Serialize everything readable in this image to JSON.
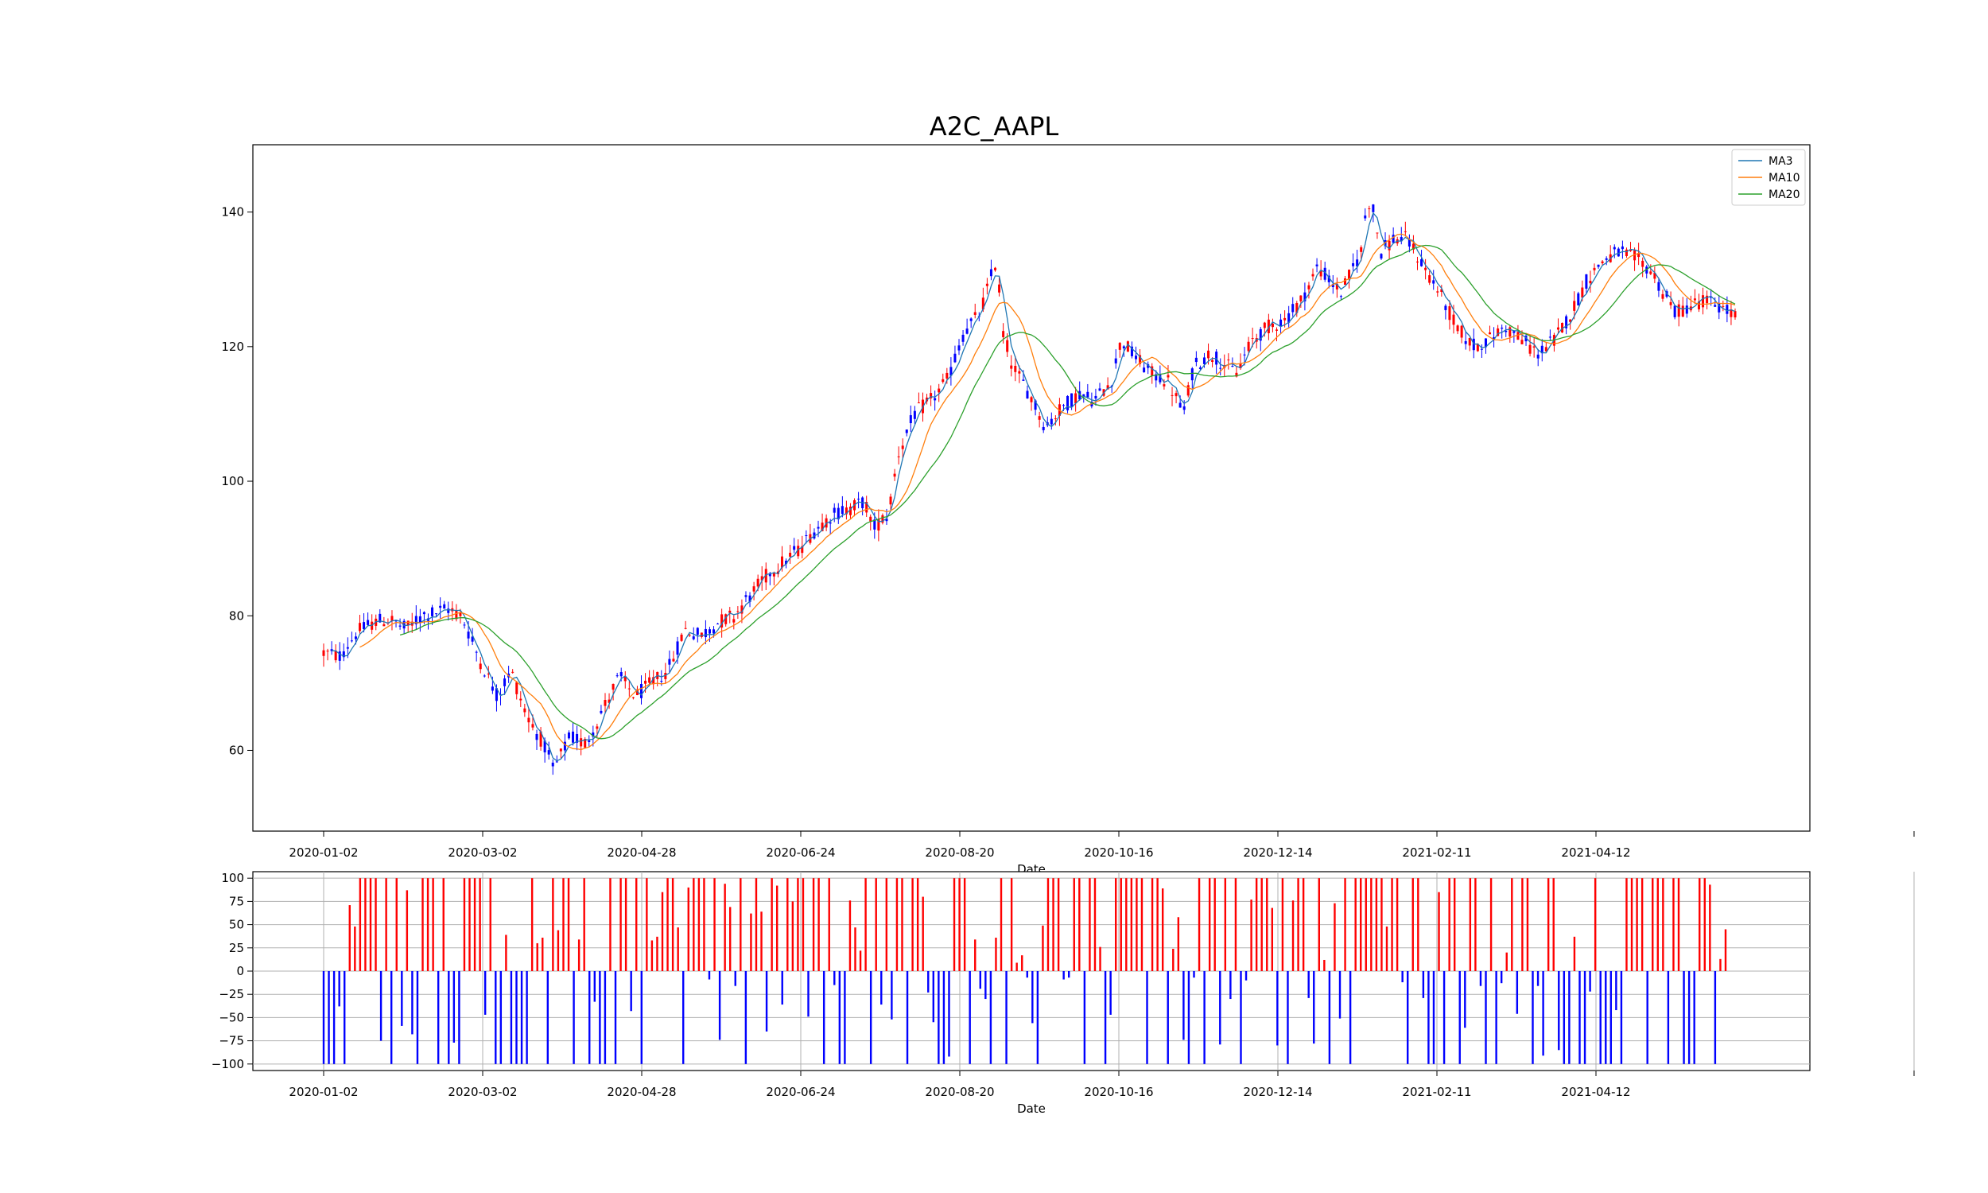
{
  "chart_data": {
    "title": "A2C_AAPL",
    "price_panel": {
      "type": "candlestick",
      "xlabel": "Date",
      "ylim": [
        48,
        150
      ],
      "yticks": [
        60,
        80,
        100,
        120,
        140
      ],
      "grid": false,
      "legend_position": "top-right",
      "x_tick_labels": [
        "2020-01-02",
        "2020-03-02",
        "2020-04-28",
        "2020-06-24",
        "2020-08-20",
        "2020-10-16",
        "2020-12-14",
        "2021-02-11",
        "2021-04-12"
      ],
      "bar_count": 352,
      "up_color": "#ff0000",
      "down_color": "#0000ff",
      "close_anchors": [
        [
          0,
          74.5
        ],
        [
          5,
          74.0
        ],
        [
          10,
          77.5
        ],
        [
          15,
          79.0
        ],
        [
          20,
          79.5
        ],
        [
          25,
          78.0
        ],
        [
          30,
          80.0
        ],
        [
          38,
          81.0
        ],
        [
          42,
          80.0
        ],
        [
          48,
          73.0
        ],
        [
          53,
          68.0
        ],
        [
          57,
          72.0
        ],
        [
          62,
          65.0
        ],
        [
          67,
          61.0
        ],
        [
          70,
          57.0
        ],
        [
          75,
          62.0
        ],
        [
          80,
          61.0
        ],
        [
          85,
          66.0
        ],
        [
          90,
          71.0
        ],
        [
          95,
          68.0
        ],
        [
          100,
          70.0
        ],
        [
          105,
          72.0
        ],
        [
          110,
          78.0
        ],
        [
          115,
          77.0
        ],
        [
          120,
          79.0
        ],
        [
          125,
          80.0
        ],
        [
          130,
          83.0
        ],
        [
          135,
          86.0
        ],
        [
          140,
          88.0
        ],
        [
          145,
          90.0
        ],
        [
          150,
          93.0
        ],
        [
          155,
          95.0
        ],
        [
          160,
          96.0
        ],
        [
          165,
          97.0
        ],
        [
          167,
          93.0
        ],
        [
          172,
          95.0
        ],
        [
          175,
          104.0
        ],
        [
          180,
          110.0
        ],
        [
          185,
          112.0
        ],
        [
          190,
          115.0
        ],
        [
          195,
          122.0
        ],
        [
          200,
          125.0
        ],
        [
          205,
          133.0
        ],
        [
          207,
          122.0
        ],
        [
          210,
          117.0
        ],
        [
          215,
          113.0
        ],
        [
          220,
          108.0
        ],
        [
          225,
          111.0
        ],
        [
          230,
          113.0
        ],
        [
          235,
          112.0
        ],
        [
          240,
          115.0
        ],
        [
          243,
          121.0
        ],
        [
          248,
          118.0
        ],
        [
          252,
          116.0
        ],
        [
          257,
          115.0
        ],
        [
          262,
          110.0
        ],
        [
          265,
          117.0
        ],
        [
          270,
          119.0
        ],
        [
          273,
          118.0
        ],
        [
          278,
          116.0
        ],
        [
          283,
          121.0
        ],
        [
          288,
          123.0
        ],
        [
          293,
          124.0
        ],
        [
          298,
          127.0
        ],
        [
          303,
          132.0
        ],
        [
          306,
          130.0
        ],
        [
          310,
          128.0
        ],
        [
          316,
          134.0
        ],
        [
          318,
          142.0
        ],
        [
          320,
          140.0
        ],
        [
          322,
          134.0
        ],
        [
          326,
          136.0
        ],
        [
          330,
          136.0
        ],
        [
          335,
          132.0
        ],
        [
          340,
          128.0
        ],
        [
          345,
          123.0
        ],
        [
          350,
          120.0
        ],
        [
          355,
          121.0
        ],
        [
          360,
          123.0
        ],
        [
          365,
          121.0
        ],
        [
          370,
          119.0
        ],
        [
          375,
          121.0
        ],
        [
          380,
          125.0
        ],
        [
          385,
          130.0
        ],
        [
          390,
          133.0
        ],
        [
          395,
          134.0
        ],
        [
          400,
          133.0
        ],
        [
          405,
          131.0
        ],
        [
          408,
          128.0
        ],
        [
          412,
          125.0
        ],
        [
          416,
          126.0
        ],
        [
          420,
          127.0
        ],
        [
          425,
          126.0
        ],
        [
          430,
          124.5
        ]
      ],
      "series": [
        {
          "name": "MA3",
          "window": 3,
          "color": "#1f77b4"
        },
        {
          "name": "MA10",
          "window": 10,
          "color": "#ff7f0e"
        },
        {
          "name": "MA20",
          "window": 20,
          "color": "#2ca02c"
        }
      ]
    },
    "action_panel": {
      "type": "bar",
      "xlabel": "Date",
      "ylim": [
        -107,
        107
      ],
      "yticks": [
        100,
        75,
        50,
        25,
        0,
        -25,
        -50,
        -75,
        -100
      ],
      "ytick_labels": [
        "100",
        "75",
        "50",
        "25",
        "0",
        "−25",
        "−50",
        "−75",
        "−100"
      ],
      "grid": true,
      "positive_color": "#ff0000",
      "negative_color": "#0000ff",
      "x_tick_labels": [
        "2020-01-02",
        "2020-03-02",
        "2020-04-28",
        "2020-06-24",
        "2020-08-20",
        "2020-10-16",
        "2020-12-14",
        "2021-02-11",
        "2021-04-12"
      ]
    }
  }
}
